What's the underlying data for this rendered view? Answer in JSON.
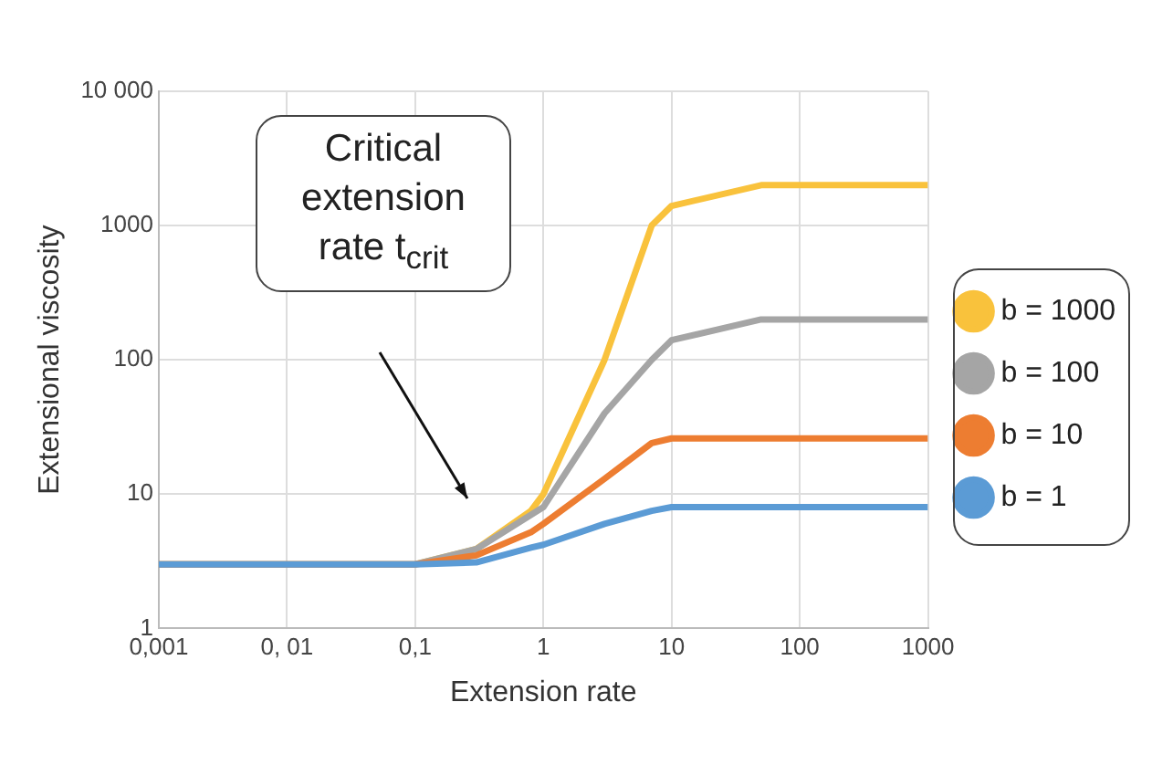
{
  "chart_data": {
    "type": "line",
    "xlabel": "Extension rate",
    "ylabel": "Extensional viscosity",
    "x": [
      0.001,
      0.1,
      0.3,
      0.8,
      1,
      3,
      7,
      10,
      50,
      1000
    ],
    "series": [
      {
        "name": "b = 1000",
        "color": "#f9c23c",
        "values": [
          3,
          3,
          3.9,
          7.5,
          10,
          100,
          1000,
          1400,
          2000,
          2000
        ]
      },
      {
        "name": "b = 100",
        "color": "#a5a5a5",
        "values": [
          3,
          3,
          3.9,
          7,
          8,
          40,
          100,
          140,
          200,
          200
        ]
      },
      {
        "name": "b = 10",
        "color": "#ed7d31",
        "values": [
          3,
          3,
          3.5,
          5.2,
          6,
          13,
          24,
          26,
          26,
          26
        ]
      },
      {
        "name": "b = 1",
        "color": "#5b9bd5",
        "values": [
          3,
          3,
          3.1,
          4,
          4.2,
          6,
          7.5,
          8,
          8,
          8
        ]
      }
    ],
    "log": "xy",
    "xlim": [
      0.001,
      1000
    ],
    "ylim": [
      1,
      10000
    ],
    "xticks": [
      {
        "value": 0.001,
        "label": "0,001"
      },
      {
        "value": 0.01,
        "label": "0, 01"
      },
      {
        "value": 0.1,
        "label": "0,1"
      },
      1,
      10,
      100,
      1000
    ],
    "yticks": [
      1,
      10,
      100,
      1000,
      {
        "value": 10000,
        "label": "10 000"
      }
    ],
    "grid": true,
    "legend": "right",
    "marker": "none",
    "line_style": "solid",
    "annotations": [
      "Critical extension rate t$_{crit}$"
    ]
  }
}
